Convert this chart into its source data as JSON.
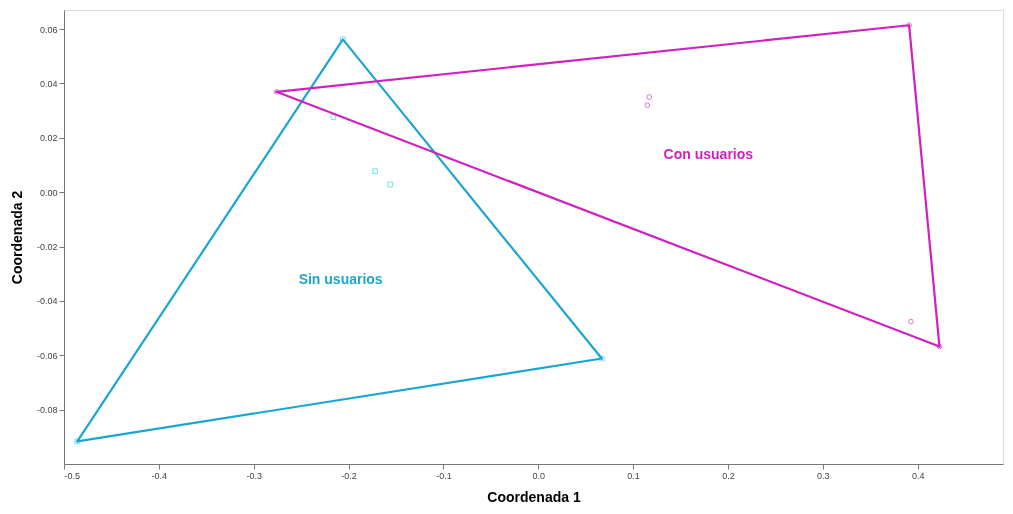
{
  "chart_data": {
    "type": "scatter",
    "xlabel": "Coordenada 1",
    "ylabel": "Coordenada 2",
    "xlim": [
      -0.5,
      0.49
    ],
    "ylim": [
      -0.1,
      0.067
    ],
    "xticks": [
      -0.5,
      -0.4,
      -0.3,
      -0.2,
      -0.1,
      {
        "value": 0,
        "label": "0.0"
      },
      0.1,
      0.2,
      0.3,
      0.4
    ],
    "yticks": [
      -0.08,
      -0.06,
      -0.04,
      -0.02,
      {
        "value": 0,
        "label": "0.00"
      },
      0.02,
      0.04,
      0.06
    ],
    "grid": false,
    "legend": false,
    "series": [
      {
        "marker": "square",
        "color": "#3fd0e0",
        "x": [
          -0.206,
          -0.216,
          -0.172,
          -0.156,
          -0.486,
          0.067
        ],
        "values": [
          0.0562,
          0.0276,
          0.0077,
          0.0028,
          -0.0917,
          -0.0612
        ]
      },
      {
        "marker": "circle",
        "color": "#c040b8",
        "x": [
          -0.276,
          0.391,
          0.423,
          0.393,
          0.117,
          0.115
        ],
        "values": [
          0.0369,
          0.0614,
          -0.0568,
          -0.0476,
          0.035,
          0.032
        ]
      },
      {
        "type": "line",
        "name": "Sin usuarios",
        "color": "#1ba6d2",
        "line_style": "solid",
        "x": [
          -0.486,
          -0.206,
          0.067
        ],
        "values": [
          -0.0917,
          0.0562,
          -0.0612
        ]
      },
      {
        "type": "line",
        "color": "#1ba6d2",
        "line_style": "solid",
        "x": [
          -0.486,
          0.067
        ],
        "values": [
          -0.0917,
          -0.0612
        ]
      },
      {
        "type": "line",
        "name": "Con usuarios",
        "color": "#d020c0",
        "line_style": "solid",
        "x": [
          -0.276,
          0.391,
          0.423
        ],
        "values": [
          0.0369,
          0.0614,
          -0.0568
        ]
      },
      {
        "type": "line",
        "color": "#d020c0",
        "line_style": "solid",
        "x": [
          -0.276,
          0.423
        ],
        "values": [
          0.0369,
          -0.0568
        ]
      }
    ]
  }
}
